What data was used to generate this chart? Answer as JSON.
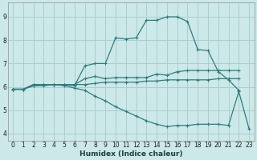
{
  "title": "",
  "xlabel": "Humidex (Indice chaleur)",
  "background_color": "#cce8e8",
  "grid_color": "#aacfcf",
  "line_color": "#2e7d7d",
  "xlim": [
    -0.5,
    23.5
  ],
  "ylim": [
    3.7,
    9.6
  ],
  "xticks": [
    0,
    1,
    2,
    3,
    4,
    5,
    6,
    7,
    8,
    9,
    10,
    11,
    12,
    13,
    14,
    15,
    16,
    17,
    18,
    19,
    20,
    21,
    22,
    23
  ],
  "yticks": [
    4,
    5,
    6,
    7,
    8,
    9
  ],
  "lines": [
    {
      "x": [
        0,
        1,
        2,
        3,
        4,
        5,
        6,
        7,
        8,
        9,
        10,
        11,
        12,
        13,
        14,
        15,
        16,
        17,
        18,
        19,
        20,
        21,
        22
      ],
      "y": [
        5.9,
        5.9,
        6.1,
        6.1,
        6.1,
        6.1,
        6.05,
        6.9,
        7.0,
        7.0,
        8.1,
        8.05,
        8.1,
        8.85,
        8.85,
        9.0,
        9.0,
        8.8,
        7.6,
        7.55,
        6.65,
        6.3,
        5.85
      ]
    },
    {
      "x": [
        0,
        1,
        2,
        3,
        4,
        5,
        6,
        7,
        8,
        9,
        10,
        11,
        12,
        13,
        14,
        15,
        16,
        17,
        18,
        19,
        20,
        21,
        22
      ],
      "y": [
        5.9,
        5.9,
        6.1,
        6.1,
        6.1,
        6.1,
        6.1,
        6.35,
        6.45,
        6.35,
        6.4,
        6.4,
        6.4,
        6.4,
        6.55,
        6.5,
        6.65,
        6.7,
        6.7,
        6.7,
        6.7,
        6.7,
        6.7
      ]
    },
    {
      "x": [
        0,
        1,
        2,
        3,
        4,
        5,
        6,
        7,
        8,
        9,
        10,
        11,
        12,
        13,
        14,
        15,
        16,
        17,
        18,
        19,
        20,
        21,
        22
      ],
      "y": [
        5.9,
        5.9,
        6.05,
        6.05,
        6.1,
        6.1,
        6.1,
        6.1,
        6.15,
        6.2,
        6.2,
        6.2,
        6.2,
        6.25,
        6.25,
        6.3,
        6.3,
        6.3,
        6.3,
        6.3,
        6.35,
        6.35,
        6.35
      ]
    },
    {
      "x": [
        0,
        1,
        2,
        3,
        4,
        5,
        6,
        7,
        8,
        9,
        10,
        11,
        12,
        13,
        14,
        15,
        16,
        17,
        18,
        19,
        20,
        21,
        22,
        23
      ],
      "y": [
        5.9,
        5.9,
        6.05,
        6.1,
        6.1,
        6.05,
        5.95,
        5.85,
        5.6,
        5.4,
        5.15,
        4.95,
        4.75,
        4.55,
        4.4,
        4.3,
        4.35,
        4.35,
        4.4,
        4.4,
        4.4,
        4.35,
        5.8,
        4.2
      ]
    }
  ]
}
